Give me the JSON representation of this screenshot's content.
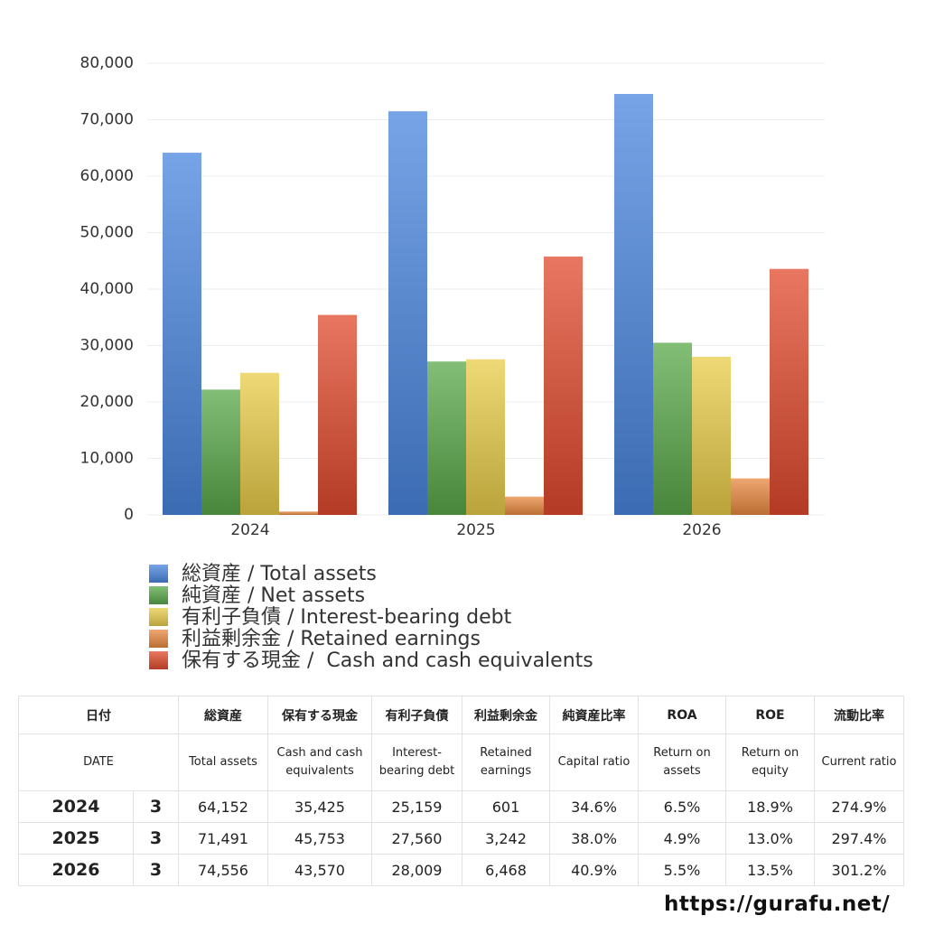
{
  "chart_data": {
    "type": "bar",
    "categories": [
      "2024",
      "2025",
      "2026"
    ],
    "series": [
      {
        "name": "総資産 / Total assets",
        "color": "#4a86de",
        "values": [
          64152,
          71491,
          74556
        ]
      },
      {
        "name": "純資産 / Net assets",
        "color": "#5aa84a",
        "values": [
          22197,
          27167,
          30493
        ]
      },
      {
        "name": "有利子負債 / Interest-bearing debt",
        "color": "#e8cc48",
        "values": [
          25159,
          27560,
          28009
        ]
      },
      {
        "name": "利益剰余金 / Retained earnings",
        "color": "#e88a40",
        "values": [
          601,
          3242,
          6468
        ]
      },
      {
        "name": "保有する現金 /  Cash and cash equivalents",
        "color": "#e04a2c",
        "values": [
          35425,
          45753,
          43570
        ]
      }
    ],
    "ylim": [
      0,
      80000
    ],
    "yticks": [
      0,
      {
        "value": 10000,
        "label": "10,000"
      },
      {
        "value": 20000,
        "label": "20,000"
      },
      {
        "value": 30000,
        "label": "30,000"
      },
      {
        "value": 40000,
        "label": "40,000"
      },
      {
        "value": 50000,
        "label": "50,000"
      },
      {
        "value": 60000,
        "label": "60,000"
      },
      {
        "value": 70000,
        "label": "70,000"
      },
      {
        "value": 80000,
        "label": "80,000"
      }
    ],
    "grid": true,
    "legend": "bottom"
  },
  "table": {
    "header_ja": [
      "日付",
      "総資産",
      "保有する現金",
      "有利子負債",
      "利益剰余金",
      "純資産比率",
      "ROA",
      "ROE",
      "流動比率"
    ],
    "header_en": [
      "DATE",
      "Total assets",
      "Cash and cash equivalents",
      "Interest-bearing debt",
      "Retained earnings",
      "Capital ratio",
      "Return on assets",
      "Return on equity",
      "Current ratio"
    ],
    "rows": [
      [
        "2024",
        "3",
        "64,152",
        "35,425",
        "25,159",
        "601",
        "34.6%",
        "6.5%",
        "18.9%",
        "274.9%"
      ],
      [
        "2025",
        "3",
        "71,491",
        "45,753",
        "27,560",
        "3,242",
        "38.0%",
        "4.9%",
        "13.0%",
        "297.4%"
      ],
      [
        "2026",
        "3",
        "74,556",
        "43,570",
        "28,009",
        "6,468",
        "40.9%",
        "5.5%",
        "13.5%",
        "301.2%"
      ]
    ]
  },
  "footer": {
    "url": "https://gurafu.net/"
  }
}
